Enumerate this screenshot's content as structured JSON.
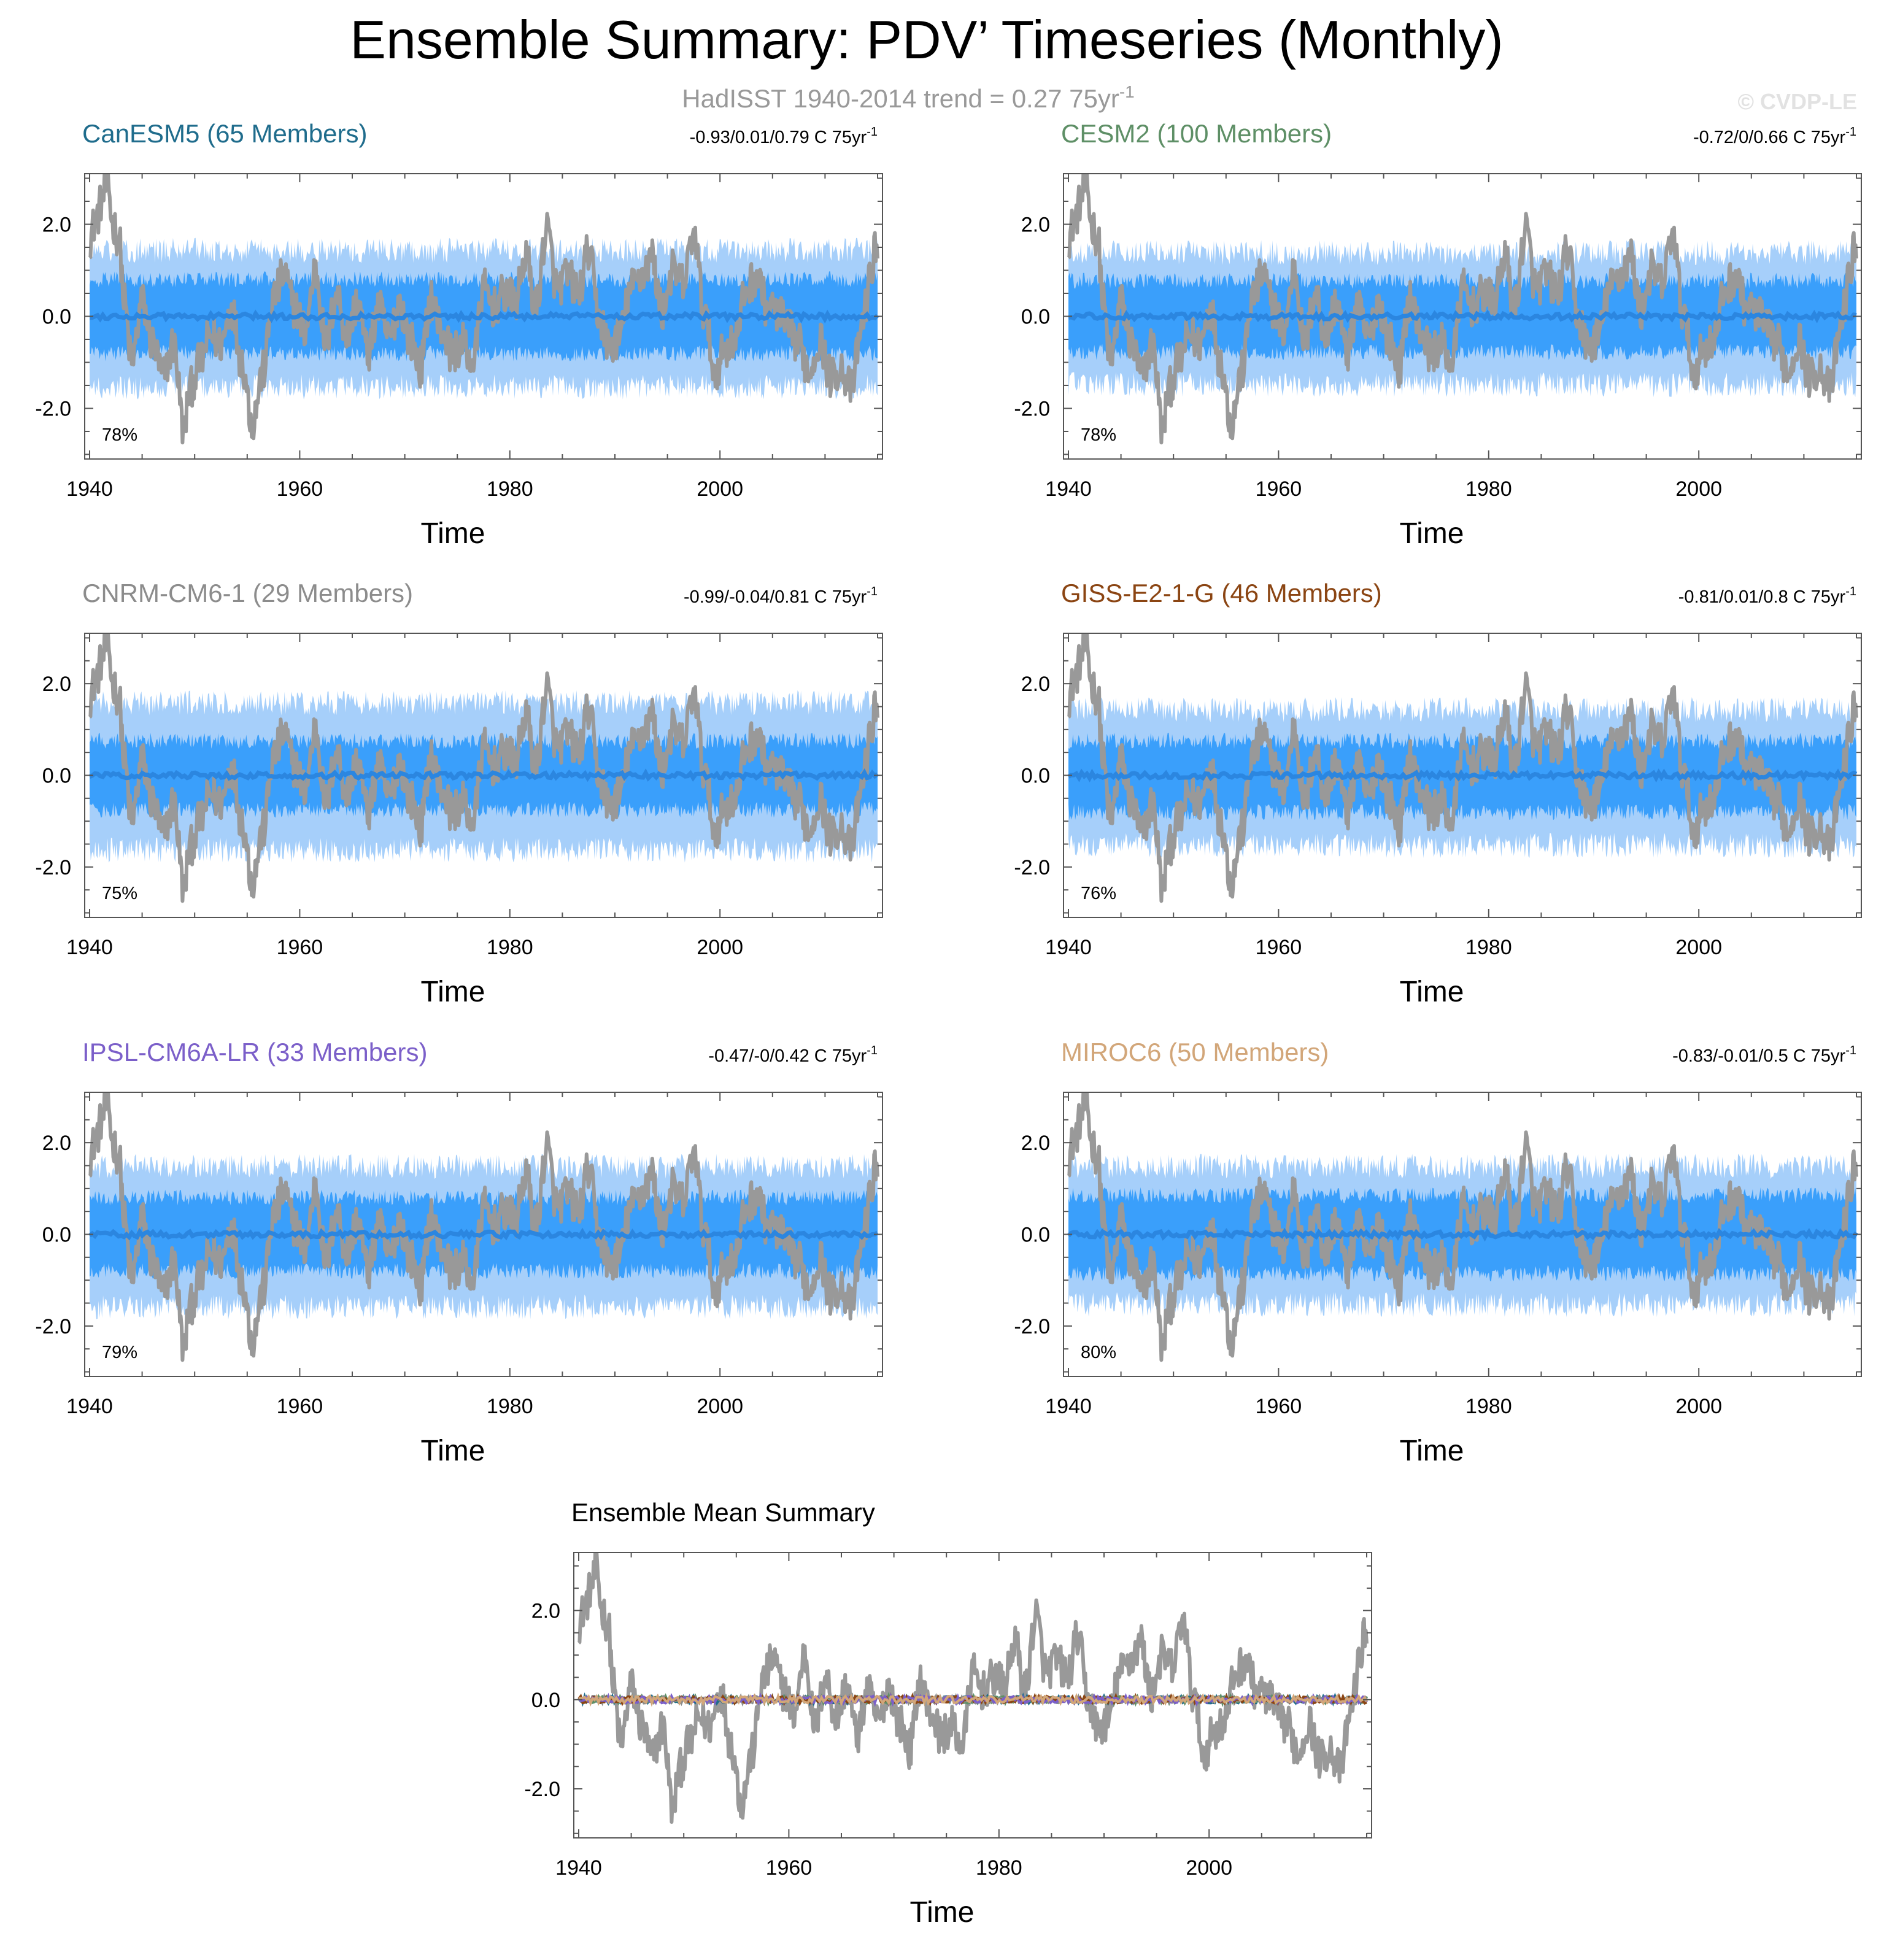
{
  "figure": {
    "title": "Ensemble Summary: PDV’ Timeseries (Monthly)",
    "subtitle": "HadISST 1940-2014 trend = 0.27 75yr",
    "subtitle_sup": "-1",
    "watermark": "© CVDP-LE"
  },
  "colors": {
    "observed": "#999999",
    "spread_outer": "#a6cffa",
    "spread_inner": "#3a9ffb",
    "ensemble_mean": "#2b86e0",
    "axis": "#555555"
  },
  "chart_data": [
    {
      "type": "line",
      "title": "CanESM5 (65 Members)",
      "title_color": "#1f6c8c",
      "stats": "-0.93/0.01/0.79 C 75yr",
      "stats_sup": "-1",
      "percent": "78%",
      "xlabel": "Time",
      "xticks": [
        "1940",
        "1960",
        "1980",
        "2000"
      ],
      "yticks": [
        "2.0",
        "0.0",
        "-2.0"
      ],
      "xlim": [
        1940,
        2015
      ],
      "ylim": [
        -3.1,
        3.1
      ],
      "series": [
        {
          "name": "HadISST",
          "color": "#999999"
        },
        {
          "name": "Ensemble mean",
          "color": "#2b86e0",
          "level": 0.0
        },
        {
          "name": "Inner spread",
          "color": "#3a9ffb",
          "upper": 0.75,
          "lower": -0.75
        },
        {
          "name": "Outer spread",
          "color": "#a6cffa",
          "upper": 1.35,
          "lower": -1.45
        }
      ]
    },
    {
      "type": "line",
      "title": "CESM2 (100 Members)",
      "title_color": "#5e8f66",
      "stats": "-0.72/0/0.66 C 75yr",
      "stats_sup": "-1",
      "percent": "78%",
      "xlabel": "Time",
      "xticks": [
        "1940",
        "1960",
        "1980",
        "2000"
      ],
      "yticks": [
        "2.0",
        "0.0",
        "-2.0"
      ],
      "xlim": [
        1940,
        2015
      ],
      "ylim": [
        -3.1,
        3.1
      ],
      "series": [
        {
          "name": "HadISST",
          "color": "#999999"
        },
        {
          "name": "Ensemble mean",
          "color": "#2b86e0",
          "level": 0.0
        },
        {
          "name": "Inner spread",
          "color": "#3a9ffb",
          "upper": 0.72,
          "lower": -0.72
        },
        {
          "name": "Outer spread",
          "color": "#a6cffa",
          "upper": 1.3,
          "lower": -1.4
        }
      ]
    },
    {
      "type": "line",
      "title": "CNRM-CM6-1 (29 Members)",
      "title_color": "#8c8c8c",
      "stats": "-0.99/-0.04/0.81 C 75yr",
      "stats_sup": "-1",
      "percent": "75%",
      "xlabel": "Time",
      "xticks": [
        "1940",
        "1960",
        "1980",
        "2000"
      ],
      "yticks": [
        "2.0",
        "0.0",
        "-2.0"
      ],
      "xlim": [
        1940,
        2015
      ],
      "ylim": [
        -3.1,
        3.1
      ],
      "series": [
        {
          "name": "HadISST",
          "color": "#999999"
        },
        {
          "name": "Ensemble mean",
          "color": "#2b86e0",
          "level": 0.0
        },
        {
          "name": "Inner spread",
          "color": "#3a9ffb",
          "upper": 0.7,
          "lower": -0.7
        },
        {
          "name": "Outer spread",
          "color": "#a6cffa",
          "upper": 1.5,
          "lower": -1.55
        }
      ]
    },
    {
      "type": "line",
      "title": "GISS-E2-1-G (46 Members)",
      "title_color": "#8b4513",
      "stats": "-0.81/0.01/0.8 C 75yr",
      "stats_sup": "-1",
      "percent": "76%",
      "xlabel": "Time",
      "xticks": [
        "1940",
        "1960",
        "1980",
        "2000"
      ],
      "yticks": [
        "2.0",
        "0.0",
        "-2.0"
      ],
      "xlim": [
        1940,
        2015
      ],
      "ylim": [
        -3.1,
        3.1
      ],
      "series": [
        {
          "name": "HadISST",
          "color": "#999999"
        },
        {
          "name": "Ensemble mean",
          "color": "#2b86e0",
          "level": 0.0
        },
        {
          "name": "Inner spread",
          "color": "#3a9ffb",
          "upper": 0.7,
          "lower": -0.75
        },
        {
          "name": "Outer spread",
          "color": "#a6cffa",
          "upper": 1.35,
          "lower": -1.45
        }
      ]
    },
    {
      "type": "line",
      "title": "IPSL-CM6A-LR (33 Members)",
      "title_color": "#7b5fc9",
      "stats": "-0.47/-0/0.42 C 75yr",
      "stats_sup": "-1",
      "percent": "79%",
      "xlabel": "Time",
      "xticks": [
        "1940",
        "1960",
        "1980",
        "2000"
      ],
      "yticks": [
        "2.0",
        "0.0",
        "-2.0"
      ],
      "xlim": [
        1940,
        2015
      ],
      "ylim": [
        -3.1,
        3.1
      ],
      "series": [
        {
          "name": "HadISST",
          "color": "#999999"
        },
        {
          "name": "Ensemble mean",
          "color": "#2b86e0",
          "level": 0.0
        },
        {
          "name": "Inner spread",
          "color": "#3a9ffb",
          "upper": 0.75,
          "lower": -0.75
        },
        {
          "name": "Outer spread",
          "color": "#a6cffa",
          "upper": 1.4,
          "lower": -1.5
        }
      ]
    },
    {
      "type": "line",
      "title": "MIROC6 (50 Members)",
      "title_color": "#d2a679",
      "stats": "-0.83/-0.01/0.5 C 75yr",
      "stats_sup": "-1",
      "percent": "80%",
      "xlabel": "Time",
      "xticks": [
        "1940",
        "1960",
        "1980",
        "2000"
      ],
      "yticks": [
        "2.0",
        "0.0",
        "-2.0"
      ],
      "xlim": [
        1940,
        2015
      ],
      "ylim": [
        -3.1,
        3.1
      ],
      "series": [
        {
          "name": "HadISST",
          "color": "#999999"
        },
        {
          "name": "Ensemble mean",
          "color": "#2b86e0",
          "level": 0.0
        },
        {
          "name": "Inner spread",
          "color": "#3a9ffb",
          "upper": 0.8,
          "lower": -0.8
        },
        {
          "name": "Outer spread",
          "color": "#a6cffa",
          "upper": 1.4,
          "lower": -1.45
        }
      ]
    },
    {
      "type": "line",
      "title": "Ensemble Mean Summary",
      "title_color": "#000000",
      "xlabel": "Time",
      "xticks": [
        "1940",
        "1960",
        "1980",
        "2000"
      ],
      "yticks": [
        "2.0",
        "0.0",
        "-2.0"
      ],
      "xlim": [
        1940,
        2015
      ],
      "ylim": [
        -3.1,
        3.3
      ],
      "series": [
        {
          "name": "HadISST",
          "color": "#999999"
        },
        {
          "name": "CanESM5",
          "color": "#1f6c8c",
          "level": 0.0
        },
        {
          "name": "CESM2",
          "color": "#5e8f66",
          "level": 0.0
        },
        {
          "name": "CNRM-CM6-1",
          "color": "#8c8c8c",
          "level": 0.0
        },
        {
          "name": "GISS-E2-1-G",
          "color": "#8b4513",
          "level": 0.0
        },
        {
          "name": "IPSL-CM6A-LR",
          "color": "#7b5fc9",
          "level": 0.0
        },
        {
          "name": "MIROC6",
          "color": "#d2a679",
          "level": 0.0
        }
      ]
    }
  ]
}
